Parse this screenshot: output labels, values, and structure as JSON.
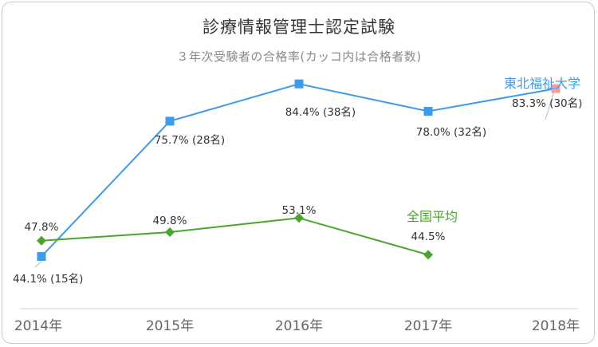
{
  "chart_data": {
    "type": "line",
    "title": "診療情報管理士認定試験",
    "subtitle": "３年次受験者の合格率(カッコ内は合格者数)",
    "categories": [
      "2014年",
      "2015年",
      "2016年",
      "2017年",
      "2018年"
    ],
    "ylim": [
      0,
      100
    ],
    "grid": false,
    "series": [
      {
        "name": "東北福祉大学",
        "color": "#3d9be9",
        "highlight_color": "#f0a09a",
        "values": [
          44.1,
          75.7,
          84.4,
          78.0,
          83.3
        ],
        "labels": [
          "44.1% (15名)",
          "75.7% (28名)",
          "84.4% (38名)",
          "78.0% (32名)",
          "83.3% (30名)"
        ]
      },
      {
        "name": "全国平均",
        "color": "#4aa52e",
        "values": [
          47.8,
          49.8,
          53.1,
          44.5,
          null
        ],
        "labels": [
          "47.8%",
          "49.8%",
          "53.1%",
          "44.5%",
          null
        ]
      }
    ]
  }
}
